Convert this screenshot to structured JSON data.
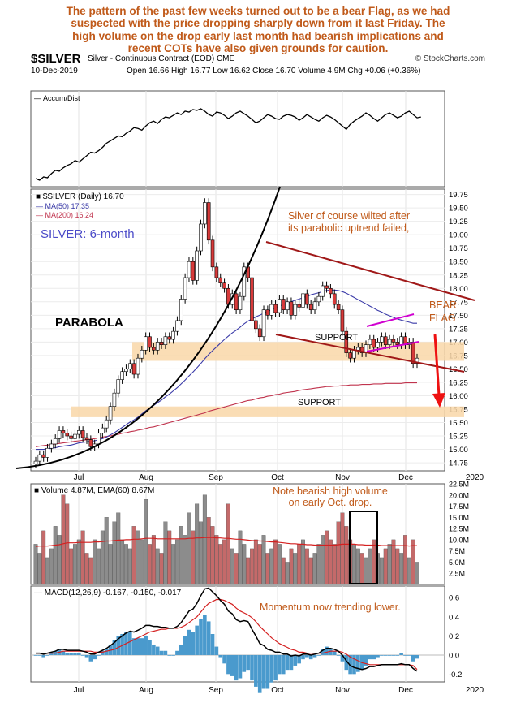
{
  "annotation_text": [
    "The pattern of the past few weeks turned out to be a bear Flag, as we had",
    "suspected with the price dropping sharply down from it last Friday. The",
    "high volume on the drop early last month had bearish implications and",
    "recent COTs have also given grounds for caution."
  ],
  "header": {
    "symbol": "$SILVER",
    "description": "Silver - Continuous Contract (EOD)",
    "exchange": "CME",
    "source": "© StockCharts.com",
    "date": "10-Dec-2019",
    "ohlc": "Open 16.66  High 16.77  Low 16.62  Close 16.70  Volume 4.9M  Chg +0.06 (+0.36%)"
  },
  "colors": {
    "up": "#d9d9d9",
    "down": "#d83a3a",
    "ma50": "#3a3aa8",
    "ma200": "#c0334d",
    "support": "#f9d7a8",
    "annot": "#c05a1a",
    "volume_up": "#c46a6a",
    "volume_down": "#8c8c8c",
    "macd_hist": "#4a9acd"
  },
  "x_axis_labels": [
    "Jul",
    "Aug",
    "Sep",
    "Oct",
    "Nov",
    "Dec",
    "2020"
  ],
  "chart_data": [
    {
      "type": "line",
      "title": "Accum/Dist",
      "series": [
        {
          "name": "Accum/Dist",
          "values": [
            12,
            10,
            14,
            13,
            18,
            22,
            21,
            25,
            28,
            30,
            34,
            32,
            36,
            40,
            44,
            43,
            46,
            50,
            55,
            58,
            61,
            64,
            63,
            67,
            70,
            74,
            73,
            71,
            76,
            80,
            82,
            79,
            84,
            87,
            86,
            89,
            92,
            90,
            94,
            93,
            96,
            95,
            97,
            94,
            90,
            88,
            93,
            92,
            89,
            85,
            88,
            92,
            94,
            91,
            88,
            84,
            80,
            82,
            86,
            90,
            88,
            85,
            84,
            88,
            90,
            89,
            87,
            83,
            86,
            90,
            87,
            84,
            82,
            86,
            89,
            87,
            84,
            80,
            76,
            72,
            78,
            82,
            85,
            88,
            92,
            89,
            85,
            82,
            86,
            90,
            92,
            89,
            86,
            88,
            92,
            94,
            90,
            86,
            87
          ]
        }
      ]
    },
    {
      "type": "candlestick",
      "title": "$SILVER (Daily) 16.70",
      "label": "SILVER: 6-month",
      "legend": [
        "$SILVER (Daily) 16.70",
        "MA(50) 17.35",
        "MA(200) 16.24"
      ],
      "y_ticks": [
        14.75,
        15.0,
        15.25,
        15.5,
        15.75,
        16.0,
        16.25,
        16.5,
        16.75,
        17.0,
        17.25,
        17.5,
        17.75,
        18.0,
        18.25,
        18.5,
        18.75,
        19.0,
        19.25,
        19.5,
        19.75
      ],
      "ylim": [
        14.6,
        19.85
      ],
      "close": [
        14.78,
        14.9,
        14.85,
        15.02,
        15.1,
        15.2,
        15.35,
        15.3,
        15.25,
        15.2,
        15.28,
        15.35,
        15.22,
        15.18,
        15.05,
        15.1,
        15.3,
        15.4,
        15.55,
        15.8,
        16.05,
        16.3,
        16.45,
        16.5,
        16.6,
        16.4,
        16.7,
        16.85,
        17.1,
        16.9,
        16.85,
        17.0,
        16.95,
        17.1,
        17.05,
        17.2,
        17.4,
        17.8,
        18.2,
        18.5,
        18.15,
        18.7,
        19.2,
        19.6,
        18.9,
        18.4,
        18.2,
        18.1,
        18.0,
        17.7,
        17.9,
        17.6,
        17.85,
        18.4,
        18.2,
        17.4,
        17.25,
        17.1,
        17.6,
        17.5,
        17.7,
        17.55,
        17.8,
        17.6,
        17.75,
        17.5,
        17.7,
        17.65,
        17.9,
        17.7,
        17.6,
        17.75,
        17.85,
        18.05,
        18.0,
        17.9,
        17.7,
        17.6,
        17.2,
        16.8,
        16.7,
        16.85,
        16.9,
        16.8,
        16.95,
        17.05,
        16.9,
        17.0,
        17.1,
        16.95,
        17.05,
        17.0,
        16.95,
        17.1,
        16.95,
        17.0,
        16.6,
        16.7
      ],
      "ma50": [
        15.0,
        15.0,
        15.0,
        15.01,
        15.02,
        15.03,
        15.05,
        15.06,
        15.07,
        15.08,
        15.1,
        15.12,
        15.13,
        15.14,
        15.15,
        15.16,
        15.18,
        15.2,
        15.23,
        15.27,
        15.31,
        15.36,
        15.41,
        15.46,
        15.51,
        15.55,
        15.6,
        15.66,
        15.72,
        15.77,
        15.82,
        15.87,
        15.92,
        15.98,
        16.03,
        16.09,
        16.15,
        16.22,
        16.29,
        16.37,
        16.44,
        16.52,
        16.6,
        16.69,
        16.77,
        16.84,
        16.91,
        16.98,
        17.05,
        17.11,
        17.17,
        17.22,
        17.28,
        17.34,
        17.39,
        17.43,
        17.47,
        17.5,
        17.54,
        17.57,
        17.61,
        17.64,
        17.67,
        17.7,
        17.72,
        17.75,
        17.78,
        17.8,
        17.83,
        17.85,
        17.88,
        17.9,
        17.92,
        17.94,
        17.96,
        17.97,
        17.97,
        17.96,
        17.94,
        17.91,
        17.87,
        17.83,
        17.79,
        17.75,
        17.71,
        17.67,
        17.63,
        17.59,
        17.56,
        17.52,
        17.49,
        17.46,
        17.43,
        17.41,
        17.39,
        17.37,
        17.35,
        17.35
      ],
      "ma200": [
        15.05,
        15.06,
        15.07,
        15.08,
        15.09,
        15.1,
        15.11,
        15.12,
        15.13,
        15.14,
        15.15,
        15.16,
        15.17,
        15.18,
        15.19,
        15.2,
        15.21,
        15.23,
        15.24,
        15.25,
        15.27,
        15.28,
        15.3,
        15.31,
        15.33,
        15.34,
        15.36,
        15.37,
        15.39,
        15.41,
        15.42,
        15.44,
        15.46,
        15.48,
        15.5,
        15.52,
        15.54,
        15.56,
        15.58,
        15.6,
        15.62,
        15.64,
        15.66,
        15.68,
        15.71,
        15.73,
        15.75,
        15.77,
        15.79,
        15.81,
        15.83,
        15.85,
        15.87,
        15.89,
        15.91,
        15.92,
        15.94,
        15.96,
        15.97,
        15.99,
        16.0,
        16.02,
        16.03,
        16.05,
        16.06,
        16.07,
        16.08,
        16.1,
        16.11,
        16.12,
        16.13,
        16.14,
        16.15,
        16.16,
        16.17,
        16.17,
        16.18,
        16.18,
        16.19,
        16.19,
        16.2,
        16.2,
        16.2,
        16.21,
        16.21,
        16.21,
        16.22,
        16.22,
        16.22,
        16.23,
        16.23,
        16.23,
        16.23,
        16.23,
        16.24,
        16.24,
        16.24,
        16.24
      ],
      "annotations": {
        "parabola": "PARABOLA",
        "wilted": [
          "Silver of course wilted after",
          "its parabolic uptrend failed,"
        ],
        "bear_flag": [
          "BEAR",
          "FLAG"
        ],
        "support1": "SUPPORT",
        "support2": "SUPPORT"
      },
      "support_zones": [
        [
          16.65,
          17.0
        ],
        [
          15.6,
          15.8
        ]
      ]
    },
    {
      "type": "bar",
      "title": "Volume 4.87M, EMA(60) 8.67M",
      "y_ticks": [
        2.5,
        5.0,
        7.5,
        10.0,
        12.5,
        15.0,
        17.5,
        20.0,
        22.5
      ],
      "y_tick_labels": [
        "2.5M",
        "5.0M",
        "7.5M",
        "10.0M",
        "12.5M",
        "15.0M",
        "17.5M",
        "20.0M",
        "22.5M"
      ],
      "ylim": [
        0,
        22.5
      ],
      "annotation": [
        "Note bearish high volume",
        "on early Oct. drop."
      ],
      "values": [
        9,
        7,
        12,
        6,
        8,
        13,
        11,
        20,
        18,
        8,
        9,
        10,
        12,
        7,
        6,
        10,
        8,
        12,
        15,
        9,
        14,
        16,
        10,
        9,
        8,
        13,
        12,
        10,
        19,
        9,
        11,
        8,
        7,
        14,
        12,
        9,
        10,
        13,
        11,
        16,
        12,
        18,
        14,
        20,
        15,
        13,
        11,
        9,
        10,
        18,
        8,
        7,
        12,
        9,
        6,
        8,
        10,
        9,
        11,
        7,
        8,
        10,
        9,
        6,
        5,
        8,
        7,
        9,
        10,
        8,
        6,
        7,
        9,
        11,
        12,
        10,
        9,
        14,
        16,
        13,
        10,
        9,
        8,
        7,
        6,
        8,
        10,
        7,
        6,
        8,
        9,
        10,
        8,
        7,
        11,
        6,
        10,
        5
      ],
      "ema": [
        8.5,
        8.6,
        8.6,
        8.6,
        8.7,
        8.8,
        8.9,
        9.1,
        9.3,
        9.3,
        9.3,
        9.4,
        9.4,
        9.4,
        9.4,
        9.5,
        9.5,
        9.6,
        9.7,
        9.7,
        9.8,
        9.9,
        9.9,
        10.0,
        10.0,
        10.1,
        10.1,
        10.2,
        10.3,
        10.3,
        10.3,
        10.2,
        10.2,
        10.2,
        10.2,
        10.2,
        10.2,
        10.2,
        10.2,
        10.3,
        10.3,
        10.4,
        10.4,
        10.5,
        10.5,
        10.5,
        10.4,
        10.4,
        10.3,
        10.3,
        10.2,
        10.1,
        10.1,
        10.0,
        9.9,
        9.8,
        9.8,
        9.7,
        9.7,
        9.6,
        9.5,
        9.5,
        9.4,
        9.3,
        9.2,
        9.1,
        9.1,
        9.0,
        9.0,
        8.9,
        8.9,
        8.8,
        8.8,
        8.8,
        8.8,
        8.8,
        8.8,
        8.9,
        9.0,
        9.0,
        9.0,
        9.0,
        8.9,
        8.9,
        8.8,
        8.8,
        8.8,
        8.8,
        8.7,
        8.7,
        8.7,
        8.7,
        8.7,
        8.7,
        8.7,
        8.6,
        8.7,
        8.67
      ]
    },
    {
      "type": "line",
      "title": "MACD(12,26,9) -0.167, -0.150, -0.017",
      "y_ticks": [
        -0.2,
        0.0,
        0.2,
        0.4,
        0.6
      ],
      "ylim": [
        -0.28,
        0.72
      ],
      "annotation": "Momentum now trending lower.",
      "macd": [
        0.02,
        0.02,
        0.01,
        0.02,
        0.03,
        0.04,
        0.06,
        0.06,
        0.05,
        0.05,
        0.05,
        0.05,
        0.04,
        0.03,
        0.01,
        0.01,
        0.03,
        0.05,
        0.07,
        0.1,
        0.13,
        0.17,
        0.2,
        0.23,
        0.25,
        0.24,
        0.26,
        0.28,
        0.31,
        0.31,
        0.3,
        0.3,
        0.29,
        0.29,
        0.28,
        0.28,
        0.3,
        0.34,
        0.4,
        0.46,
        0.48,
        0.54,
        0.62,
        0.69,
        0.7,
        0.66,
        0.62,
        0.57,
        0.53,
        0.46,
        0.43,
        0.37,
        0.35,
        0.36,
        0.35,
        0.27,
        0.2,
        0.12,
        0.1,
        0.06,
        0.05,
        0.03,
        0.03,
        0.01,
        0.01,
        -0.01,
        0.0,
        -0.01,
        0.01,
        0.01,
        0.0,
        0.01,
        0.02,
        0.05,
        0.07,
        0.07,
        0.06,
        0.04,
        0.0,
        -0.06,
        -0.11,
        -0.13,
        -0.14,
        -0.15,
        -0.14,
        -0.12,
        -0.12,
        -0.11,
        -0.1,
        -0.1,
        -0.1,
        -0.1,
        -0.1,
        -0.09,
        -0.1,
        -0.1,
        -0.14,
        -0.167
      ],
      "signal": [
        0.02,
        0.02,
        0.02,
        0.02,
        0.02,
        0.02,
        0.03,
        0.04,
        0.04,
        0.04,
        0.04,
        0.04,
        0.04,
        0.04,
        0.04,
        0.03,
        0.03,
        0.03,
        0.04,
        0.05,
        0.06,
        0.08,
        0.1,
        0.12,
        0.14,
        0.16,
        0.18,
        0.2,
        0.22,
        0.24,
        0.25,
        0.26,
        0.27,
        0.27,
        0.28,
        0.28,
        0.28,
        0.29,
        0.31,
        0.34,
        0.37,
        0.4,
        0.45,
        0.5,
        0.54,
        0.56,
        0.58,
        0.58,
        0.57,
        0.55,
        0.53,
        0.49,
        0.46,
        0.44,
        0.42,
        0.39,
        0.35,
        0.3,
        0.26,
        0.22,
        0.18,
        0.15,
        0.12,
        0.1,
        0.08,
        0.06,
        0.05,
        0.03,
        0.03,
        0.02,
        0.02,
        0.02,
        0.02,
        0.02,
        0.03,
        0.04,
        0.04,
        0.04,
        0.03,
        0.01,
        -0.02,
        -0.04,
        -0.06,
        -0.08,
        -0.09,
        -0.1,
        -0.1,
        -0.1,
        -0.1,
        -0.1,
        -0.1,
        -0.1,
        -0.1,
        -0.1,
        -0.1,
        -0.1,
        -0.11,
        -0.15
      ]
    }
  ]
}
